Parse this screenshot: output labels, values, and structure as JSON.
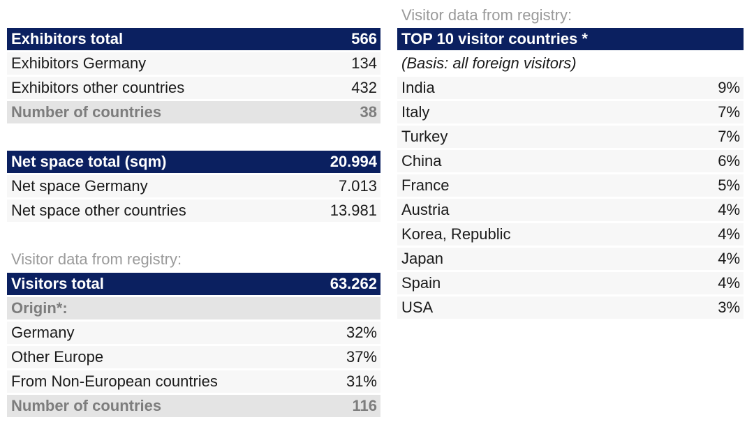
{
  "left": {
    "exhibitors": {
      "header": {
        "label": "Exhibitors total",
        "value": "566"
      },
      "rows": [
        {
          "label": "Exhibitors Germany",
          "value": "134"
        },
        {
          "label": "Exhibitors other countries",
          "value": "432"
        }
      ],
      "summary": {
        "label": "Number of countries",
        "value": "38"
      }
    },
    "net_space": {
      "header": {
        "label": "Net space total (sqm)",
        "value": "20.994"
      },
      "rows": [
        {
          "label": "Net space Germany",
          "value": "7.013"
        },
        {
          "label": "Net space other countries",
          "value": "13.981"
        }
      ]
    },
    "visitors": {
      "caption": "Visitor data from registry:",
      "header": {
        "label": "Visitors total",
        "value": "63.262"
      },
      "origin_label": "Origin*:",
      "rows": [
        {
          "label": "Germany",
          "value": "32%"
        },
        {
          "label": "Other Europe",
          "value": "37%"
        },
        {
          "label": "From Non-European countries",
          "value": "31%"
        }
      ],
      "summary": {
        "label": "Number of countries",
        "value": "116"
      }
    }
  },
  "right": {
    "caption": "Visitor data from registry:",
    "header": "TOP 10 visitor countries *",
    "basis_note": "(Basis: all foreign visitors)",
    "countries": [
      {
        "label": "India",
        "value": "9%"
      },
      {
        "label": "Italy",
        "value": "7%"
      },
      {
        "label": "Turkey",
        "value": "7%"
      },
      {
        "label": "China",
        "value": "6%"
      },
      {
        "label": "France",
        "value": "5%"
      },
      {
        "label": "Austria",
        "value": "4%"
      },
      {
        "label": "Korea, Republic",
        "value": "4%"
      },
      {
        "label": "Japan",
        "value": "4%"
      },
      {
        "label": "Spain",
        "value": "4%"
      },
      {
        "label": "USA",
        "value": "3%"
      }
    ]
  }
}
